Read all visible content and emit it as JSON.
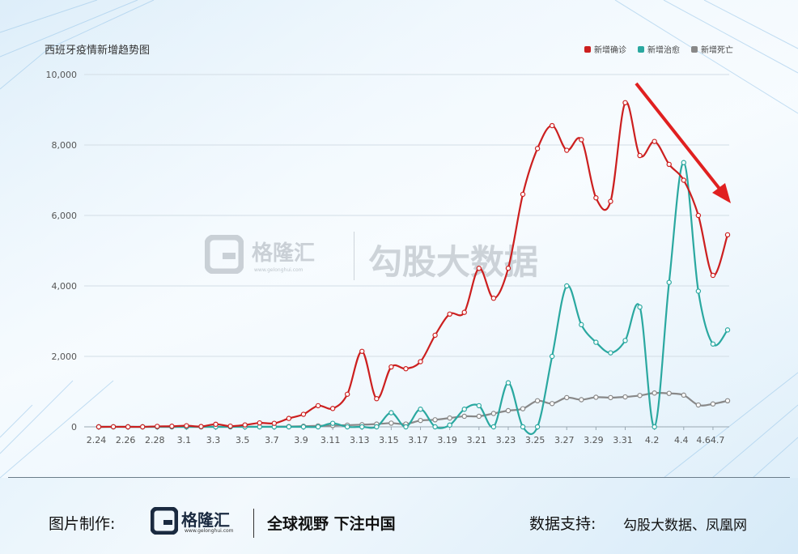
{
  "chart_data": {
    "type": "line",
    "title": "西班牙疫情新增趋势图",
    "xlabel": "",
    "ylabel": "",
    "ylim": [
      0,
      10000
    ],
    "yticks": [
      0,
      2000,
      4000,
      6000,
      8000,
      10000
    ],
    "ytick_labels": [
      "0",
      "2,000",
      "4,000",
      "6,000",
      "8,000",
      "10,000"
    ],
    "x": [
      "2.24",
      "2.25",
      "2.26",
      "2.27",
      "2.28",
      "2.29",
      "3.1",
      "3.2",
      "3.3",
      "3.4",
      "3.5",
      "3.6",
      "3.7",
      "3.8",
      "3.9",
      "3.10",
      "3.11",
      "3.12",
      "3.13",
      "3.14",
      "3.15",
      "3.16",
      "3.17",
      "3.18",
      "3.19",
      "3.20",
      "3.21",
      "3.22",
      "3.23",
      "3.24",
      "3.25",
      "3.26",
      "3.27",
      "3.28",
      "3.29",
      "3.30",
      "3.31",
      "4.1",
      "4.2",
      "4.3",
      "4.4",
      "4.5",
      "4.6",
      "4.7"
    ],
    "xtick_labels": [
      "2.24",
      "2.26",
      "2.28",
      "3.1",
      "3.3",
      "3.5",
      "3.7",
      "3.9",
      "3.11",
      "3.13",
      "3.15",
      "3.17",
      "3.19",
      "3.21",
      "3.23",
      "3.25",
      "3.27",
      "3.29",
      "3.31",
      "4.2",
      "4.4",
      "4.64.7"
    ],
    "xtick_indices": [
      0,
      2,
      4,
      6,
      8,
      10,
      12,
      14,
      16,
      18,
      20,
      22,
      24,
      26,
      28,
      30,
      32,
      34,
      36,
      38,
      40,
      42
    ],
    "legend_position": "top-right",
    "grid": true,
    "series": [
      {
        "name": "新增确诊",
        "color": "#cc1f1f",
        "values": [
          0,
          2,
          0,
          0,
          13,
          17,
          31,
          10,
          73,
          19,
          54,
          111,
          100,
          239,
          356,
          600,
          521,
          925,
          2143,
          800,
          1700,
          1650,
          1850,
          2600,
          3200,
          3250,
          4500,
          3650,
          4500,
          6600,
          7900,
          8550,
          7850,
          8150,
          6500,
          6400,
          9200,
          7700,
          8100,
          7450,
          7000,
          6000,
          4300,
          5450
        ]
      },
      {
        "name": "新增治愈",
        "color": "#2aa8a0",
        "values": [
          0,
          0,
          0,
          0,
          0,
          0,
          0,
          0,
          0,
          0,
          0,
          0,
          0,
          0,
          0,
          0,
          100,
          0,
          0,
          0,
          400,
          0,
          500,
          0,
          50,
          500,
          600,
          0,
          1250,
          0,
          0,
          2000,
          4000,
          2900,
          2400,
          2100,
          2450,
          3400,
          0,
          4100,
          7500,
          3850,
          2350,
          2750
        ]
      },
      {
        "name": "新增死亡",
        "color": "#888888",
        "values": [
          0,
          0,
          0,
          0,
          0,
          0,
          0,
          0,
          0,
          1,
          2,
          3,
          5,
          10,
          17,
          28,
          36,
          48,
          61,
          78,
          105,
          80,
          180,
          200,
          250,
          300,
          300,
          380,
          460,
          514,
          740,
          660,
          830,
          770,
          840,
          830,
          850,
          890,
          960,
          950,
          900,
          620,
          650,
          740
        ]
      }
    ]
  },
  "watermark": {
    "brand": "格隆汇",
    "url": "www.gelonghui.com",
    "name": "勾股大数据"
  },
  "footer": {
    "credit_label": "图片制作:",
    "logo_text": "格隆汇",
    "logo_url": "www.gelonghui.com",
    "slogan": "全球视野 下注中国",
    "support_label": "数据支持:",
    "support_value": "勾股大数据、凤凰网"
  }
}
